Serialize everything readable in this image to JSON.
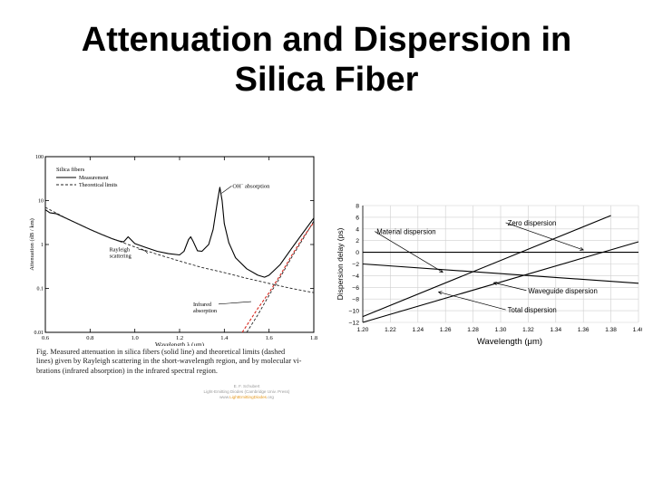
{
  "slide": {
    "title_line1": "Attenuation and Dispersion in",
    "title_line2": "Silica Fiber"
  },
  "colors": {
    "red_line": "#d8261c",
    "credit_gray": "#9a9a9a",
    "credit_orange": "#e69a20"
  },
  "caption": {
    "line1": "Fig.       Measured attenuation in silica fibers (solid line) and theoretical limits (dashed",
    "line2": "lines) given by Rayleigh scattering in the short-wavelength region, and by molecular vi-",
    "line3": "brations (infrared absorption) in the infrared spectral region."
  },
  "credit": {
    "line1": "E. F. Schubert",
    "line2": "Light-Emitting Diodes (Cambridge Univ. Press)",
    "url1": "www.",
    "url2": "LightEmittingDiodes",
    "url3": ".org"
  },
  "chart_data": [
    {
      "type": "line",
      "xlabel": "Wavelength λ (μm)",
      "ylabel": "Attenuation (dB / km)",
      "scale": {
        "y": "log"
      },
      "xlim": [
        0.6,
        1.8
      ],
      "ylim": [
        0.01,
        100
      ],
      "xticks": [
        "0.6",
        "0.8",
        "1.0",
        "1.2",
        "1.4",
        "1.6",
        "1.8"
      ],
      "yticks": [
        {
          "v": 100,
          "label": "100"
        },
        {
          "v": 10,
          "label": "10"
        },
        {
          "v": 1,
          "label": "1"
        },
        {
          "v": 0.1,
          "label": "0.1"
        },
        {
          "v": 0.01,
          "label": "0.01"
        }
      ],
      "legend": {
        "title": "Silica fibers",
        "position": "top-left",
        "items": [
          "Measurement",
          "Theoretical limits"
        ]
      },
      "annotations": [
        {
          "text": "OH",
          "superscript": "−",
          "suffix": " absorption",
          "x": 1.38,
          "y": 17
        },
        {
          "lines": [
            "Rayleigh",
            "scattering"
          ],
          "x": 1.0,
          "y": 0.7
        },
        {
          "lines": [
            "Infrared",
            "absorption"
          ],
          "x": 1.35,
          "y": 0.04
        }
      ],
      "series": [
        {
          "name": "Measurement",
          "style": "solid",
          "x": [
            0.6,
            0.62,
            0.65,
            0.7,
            0.75,
            0.8,
            0.85,
            0.9,
            0.93,
            0.95,
            0.97,
            1.0,
            1.05,
            1.1,
            1.15,
            1.2,
            1.22,
            1.24,
            1.25,
            1.26,
            1.28,
            1.3,
            1.33,
            1.35,
            1.37,
            1.38,
            1.39,
            1.4,
            1.42,
            1.45,
            1.5,
            1.55,
            1.58,
            1.6,
            1.65,
            1.7,
            1.75,
            1.8
          ],
          "y": [
            6.2,
            5.3,
            5.0,
            3.8,
            2.9,
            2.2,
            1.7,
            1.35,
            1.2,
            1.15,
            1.5,
            1.05,
            0.85,
            0.7,
            0.62,
            0.58,
            0.7,
            1.3,
            1.5,
            1.2,
            0.72,
            0.7,
            1.0,
            2.2,
            10,
            20,
            10,
            3.0,
            1.1,
            0.5,
            0.28,
            0.2,
            0.18,
            0.2,
            0.35,
            0.8,
            1.8,
            4.0
          ]
        },
        {
          "name": "Theoretical limits",
          "style": "dashed",
          "x": [
            0.6,
            0.7,
            0.8,
            0.9,
            1.0,
            1.1,
            1.2,
            1.3,
            1.4,
            1.5,
            1.6,
            1.7,
            1.8
          ],
          "y": [
            7.0,
            3.8,
            2.2,
            1.35,
            0.88,
            0.6,
            0.42,
            0.3,
            0.23,
            0.17,
            0.13,
            0.1,
            0.08
          ]
        },
        {
          "style": "dashed",
          "x": [
            1.5,
            1.55,
            1.6,
            1.65,
            1.7,
            1.75,
            1.8
          ],
          "y": [
            0.01,
            0.025,
            0.07,
            0.18,
            0.5,
            1.3,
            3.4
          ]
        },
        {
          "style": "dashed-red",
          "x": [
            1.48,
            1.55,
            1.6,
            1.65,
            1.7,
            1.75,
            1.8
          ],
          "y": [
            0.01,
            0.035,
            0.08,
            0.2,
            0.55,
            1.4,
            3.2
          ]
        }
      ]
    },
    {
      "type": "line",
      "xlabel": "Wavelength (μm)",
      "ylabel": "Dispersion delay (ps)",
      "xlim": [
        1.2,
        1.4
      ],
      "ylim": [
        -12,
        8
      ],
      "xticks": [
        "1.20",
        "1.22",
        "1.24",
        "1.26",
        "1.28",
        "1.30",
        "1.32",
        "1.34",
        "1.36",
        "1.38",
        "1.40"
      ],
      "yticks": [
        "8",
        "6",
        "4",
        "2",
        "0",
        "−2",
        "−4",
        "−6",
        "−8",
        "−10",
        "−12"
      ],
      "annotations": [
        {
          "text": "Zero dispersion",
          "x": 1.305,
          "y": 4.6,
          "target": [
            1.36,
            0.4
          ]
        },
        {
          "text": "Material dispersion",
          "x": 1.21,
          "y": 3.1,
          "target": [
            1.258,
            -3.4
          ]
        },
        {
          "text": "Waveguide dispersion",
          "x": 1.32,
          "y": -7.0,
          "target": [
            1.295,
            -5.2
          ]
        },
        {
          "text": "Total dispersion",
          "x": 1.305,
          "y": -10.3,
          "target": [
            1.255,
            -6.8
          ]
        }
      ],
      "series": [
        {
          "style": "solid",
          "x": [
            1.2,
            1.4
          ],
          "y": [
            0,
            0
          ]
        },
        {
          "style": "solid",
          "x": [
            1.2,
            1.38
          ],
          "y": [
            -11,
            6.3
          ]
        },
        {
          "style": "solid",
          "x": [
            1.2,
            1.4
          ],
          "y": [
            -12,
            1.8
          ]
        },
        {
          "style": "solid",
          "x": [
            1.2,
            1.4
          ],
          "y": [
            -2.0,
            -5.3
          ]
        }
      ]
    }
  ]
}
